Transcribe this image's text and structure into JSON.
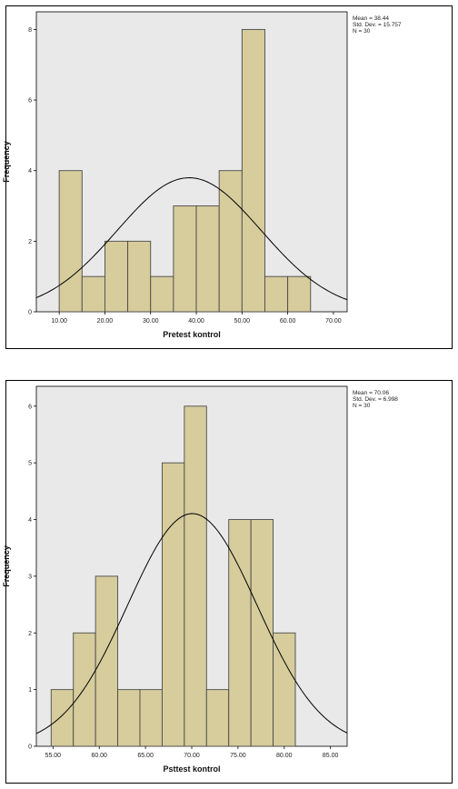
{
  "chart_data": [
    {
      "type": "bar",
      "subtype": "histogram",
      "xlabel": "Pretest kontrol",
      "ylabel": "Frequency",
      "x_ticks": [
        "10.00",
        "20.00",
        "30.00",
        "40.00",
        "50.00",
        "60.00",
        "70.00"
      ],
      "y_ticks": [
        "0",
        "2",
        "4",
        "6",
        "8"
      ],
      "xlim": [
        5,
        73
      ],
      "ylim": [
        0,
        8.5
      ],
      "bins": [
        {
          "start": 10,
          "end": 15,
          "count": 4
        },
        {
          "start": 15,
          "end": 20,
          "count": 1
        },
        {
          "start": 20,
          "end": 25,
          "count": 2
        },
        {
          "start": 25,
          "end": 30,
          "count": 2
        },
        {
          "start": 30,
          "end": 35,
          "count": 1
        },
        {
          "start": 35,
          "end": 40,
          "count": 3
        },
        {
          "start": 40,
          "end": 45,
          "count": 3
        },
        {
          "start": 45,
          "end": 50,
          "count": 4
        },
        {
          "start": 50,
          "end": 55,
          "count": 8
        },
        {
          "start": 55,
          "end": 60,
          "count": 1
        },
        {
          "start": 60,
          "end": 65,
          "count": 1
        }
      ],
      "normal_curve": {
        "mean": 38.44,
        "sd": 15.757,
        "n": 30,
        "bin_width": 5
      },
      "stats": [
        "Mean = 38.44",
        "Std. Dev. = 15.757",
        "N = 30"
      ],
      "grid": false,
      "legend": "none"
    },
    {
      "type": "bar",
      "subtype": "histogram",
      "xlabel": "Psttest kontrol",
      "ylabel": "Frequency",
      "x_ticks": [
        "55.00",
        "60.00",
        "65.00",
        "70.00",
        "75.00",
        "80.00",
        "85.00"
      ],
      "y_ticks": [
        "0",
        "1",
        "2",
        "3",
        "4",
        "5",
        "6"
      ],
      "xlim": [
        53.2,
        86.8
      ],
      "ylim": [
        0,
        6.35
      ],
      "bins": [
        {
          "start": 54.8,
          "end": 57.2,
          "count": 1
        },
        {
          "start": 57.2,
          "end": 59.6,
          "count": 2
        },
        {
          "start": 59.6,
          "end": 62.0,
          "count": 3
        },
        {
          "start": 62.0,
          "end": 64.4,
          "count": 1
        },
        {
          "start": 64.4,
          "end": 66.8,
          "count": 1
        },
        {
          "start": 66.8,
          "end": 69.2,
          "count": 5
        },
        {
          "start": 69.2,
          "end": 71.6,
          "count": 6
        },
        {
          "start": 71.6,
          "end": 74.0,
          "count": 1
        },
        {
          "start": 74.0,
          "end": 76.4,
          "count": 4
        },
        {
          "start": 76.4,
          "end": 78.8,
          "count": 4
        },
        {
          "start": 78.8,
          "end": 81.2,
          "count": 2
        }
      ],
      "normal_curve": {
        "mean": 70.06,
        "sd": 6.998,
        "n": 30,
        "bin_width": 2.4
      },
      "stats": [
        "Mean = 70.06",
        "Std. Dev. = 6.998",
        "N = 30"
      ],
      "grid": false,
      "legend": "none"
    }
  ],
  "colors": {
    "plot_bg": "#e9e9e9",
    "bar_fill": "#d6cc9c",
    "bar_stroke": "#4a4a4a",
    "curve": "#000000"
  }
}
